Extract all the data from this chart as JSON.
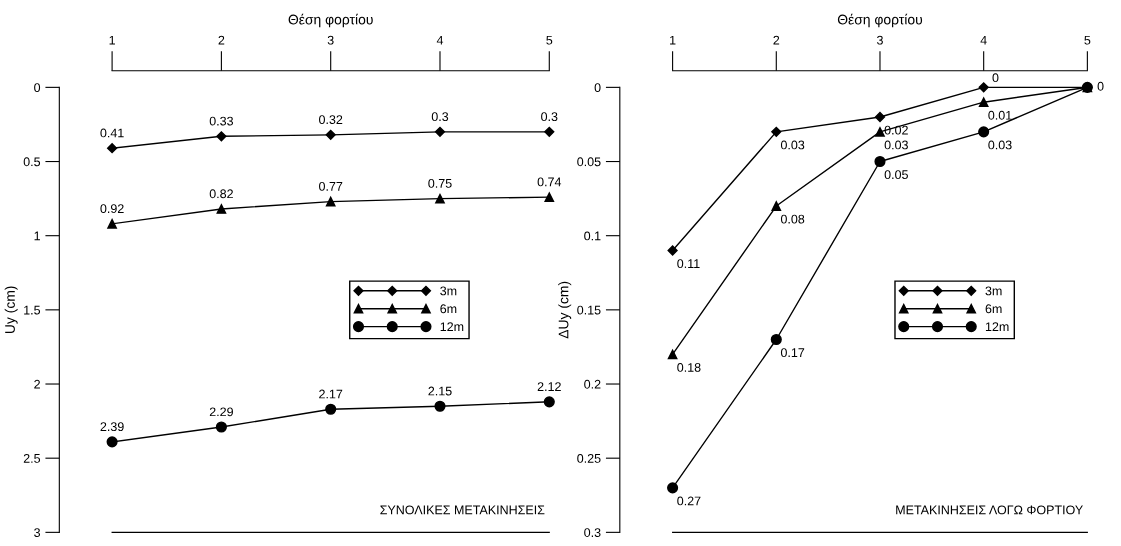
{
  "chart_data": [
    {
      "type": "line",
      "xlabel": "Θέση φορτίου",
      "ylabel": "Uy (cm)",
      "x": [
        1,
        2,
        3,
        4,
        5
      ],
      "xlim": [
        1,
        5
      ],
      "xticks": [
        1,
        2,
        3,
        4,
        5
      ],
      "ylim": [
        3,
        0
      ],
      "yticks": [
        0,
        0.5,
        1,
        1.5,
        2,
        2.5,
        3
      ],
      "grid": false,
      "legend": "center",
      "data_labels": true,
      "annotations": [
        "ΣΥΝΟΛΙΚΕΣ ΜΕΤΑΚΙΝΗΣΕΙΣ"
      ],
      "series": [
        {
          "name": "3m",
          "color": "#000000",
          "marker": "diamond",
          "values": [
            0.41,
            0.33,
            0.32,
            0.3,
            0.3
          ]
        },
        {
          "name": "6m",
          "color": "#000000",
          "marker": "triangle",
          "values": [
            0.92,
            0.82,
            0.77,
            0.75,
            0.74
          ]
        },
        {
          "name": "12m",
          "color": "#000000",
          "marker": "circle",
          "values": [
            2.39,
            2.29,
            2.17,
            2.15,
            2.12
          ]
        }
      ]
    },
    {
      "type": "line",
      "xlabel": "Θέση φορτίου",
      "ylabel": "ΔUy (cm)",
      "x": [
        1,
        2,
        3,
        4,
        5
      ],
      "xlim": [
        1,
        5
      ],
      "xticks": [
        1,
        2,
        3,
        4,
        5
      ],
      "ylim": [
        0.3,
        0
      ],
      "yticks": [
        0,
        0.05,
        0.1,
        0.15,
        0.2,
        0.25,
        0.3
      ],
      "grid": false,
      "legend": "center",
      "annotations": [
        "ΜΕΤΑΚΙΝΗΣΕΙΣ ΛΟΓΩ ΦΟΡΤΙΟΥ"
      ],
      "series": [
        {
          "name": "3m",
          "color": "#000000",
          "marker": "diamond",
          "values": [
            0.11,
            0.03,
            0.02,
            0,
            0
          ],
          "value_labels": [
            "0.11",
            "0.03",
            "0.02",
            "0",
            null
          ]
        },
        {
          "name": "6m",
          "color": "#000000",
          "marker": "triangle",
          "values": [
            0.18,
            0.08,
            0.03,
            0.01,
            0
          ],
          "value_labels": [
            "0.18",
            "0.08",
            "0.03",
            "0.01",
            null
          ]
        },
        {
          "name": "12m",
          "color": "#000000",
          "marker": "circle",
          "values": [
            0.27,
            0.17,
            0.05,
            0.03,
            0
          ],
          "value_labels": [
            "0.27",
            "0.17",
            "0.05",
            "0.03",
            "0"
          ]
        }
      ]
    }
  ]
}
